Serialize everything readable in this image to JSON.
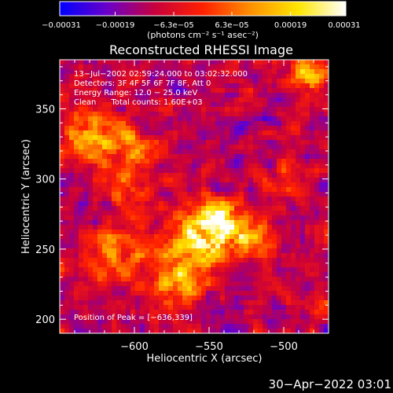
{
  "chart_data": {
    "type": "heatmap",
    "title": "Reconstructed RHESSI Image",
    "xlabel": "Heliocentric X (arcsec)",
    "ylabel": "Heliocentric Y (arcsec)",
    "x_ticks": [
      -600,
      -550,
      -500
    ],
    "x_tick_labels": [
      "−600",
      "−550",
      "−500"
    ],
    "y_ticks": [
      200,
      250,
      300,
      350
    ],
    "y_tick_labels": [
      "200",
      "250",
      "300",
      "350"
    ],
    "xlim": [
      -650,
      -470
    ],
    "ylim": [
      190,
      385
    ],
    "colorbar": {
      "min": -0.00031,
      "max": 0.00031,
      "ticks": [
        -0.00031,
        -0.00019,
        -6.3e-05,
        6.3e-05,
        0.00019,
        0.00031
      ],
      "tick_labels": [
        "−0.00031",
        "−0.00019",
        "−6.3e−05",
        "6.3e−05",
        "0.00019",
        "0.00031"
      ],
      "units_label": "(photons cm⁻² s⁻¹ asec⁻²)",
      "colors": [
        "#0000ff",
        "#6a00c8",
        "#c8003c",
        "#ff2000",
        "#ff9000",
        "#ffe600",
        "#ffffff"
      ]
    },
    "annotations": {
      "time": "13−Jul−2002 02:59:24.000 to 03:02:32.000",
      "detectors": "Detectors: 3F 4F 5F 6F 7F 8F, Att 0",
      "energy": "Energy Range: 12.0 − 25.0 keV",
      "clean": "Clean      Total counts: 1.60E+03",
      "peak": "Position of Peak = [−636,339]"
    },
    "peak_position": [
      -636,
      339
    ],
    "bright_sources": [
      {
        "x": -558,
        "y": 258,
        "value": 0.00031,
        "sigma": 14
      },
      {
        "x": -540,
        "y": 268,
        "value": 0.00028,
        "sigma": 12
      },
      {
        "x": -520,
        "y": 255,
        "value": 0.00022,
        "sigma": 9
      },
      {
        "x": -610,
        "y": 250,
        "value": 0.00018,
        "sigma": 16
      },
      {
        "x": -630,
        "y": 330,
        "value": 0.00026,
        "sigma": 14
      },
      {
        "x": -598,
        "y": 320,
        "value": 0.0002,
        "sigma": 12
      },
      {
        "x": -570,
        "y": 225,
        "value": 0.00021,
        "sigma": 13
      },
      {
        "x": -485,
        "y": 375,
        "value": 0.00024,
        "sigma": 12
      },
      {
        "x": -605,
        "y": 290,
        "value": 0.00016,
        "sigma": 10
      },
      {
        "x": -500,
        "y": 300,
        "value": 0.00012,
        "sigma": 10
      },
      {
        "x": -480,
        "y": 210,
        "value": 0.0001,
        "sigma": 9
      }
    ]
  },
  "footer": {
    "date": "30−Apr−2022 03:01"
  }
}
